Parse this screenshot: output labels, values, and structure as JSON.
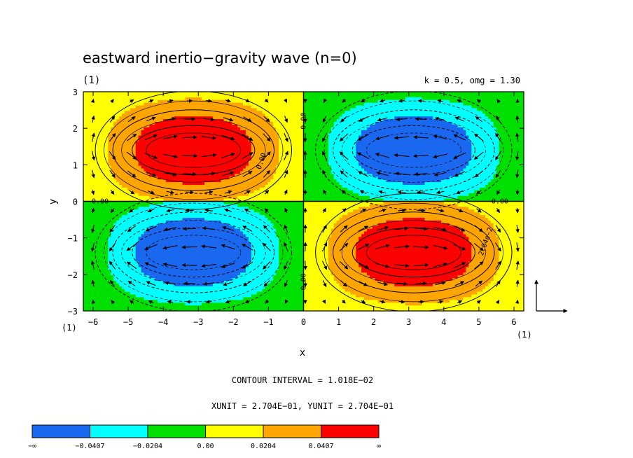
{
  "title": "eastward inertio−gravity wave (n=0)",
  "panel_label_top": "(1)",
  "params": "k = 0.5, omg = 1.30",
  "x_axis_unit_label": "(1)",
  "y_axis_unit_label": "(1)",
  "contour_interval_text": "CONTOUR INTERVAL = 1.018E−02",
  "unit_text": "XUNIT = 2.704E−01, YUNIT = 2.704E−01",
  "contour_labels": [
    "0.00",
    "0.00",
    "0.00",
    "0.00",
    "0.00",
    "2.04e−2",
    "2.04e−2"
  ],
  "colorbar": {
    "labels": [
      "−∞",
      "−0.0407",
      "−0.0204",
      "0.00",
      "0.0204",
      "0.0407",
      "∞"
    ],
    "colors": [
      "#1a68f0",
      "#00ffff",
      "#00e000",
      "#ffff00",
      "#ffa500",
      "#ff0000"
    ]
  },
  "chart_data": {
    "type": "contour",
    "xlabel": "x",
    "ylabel": "y",
    "xlim": [
      -6.28,
      6.28
    ],
    "ylim": [
      -3,
      3
    ],
    "xticks": [
      -6,
      -5,
      -4,
      -3,
      -2,
      -1,
      0,
      1,
      2,
      3,
      4,
      5,
      6
    ],
    "yticks": [
      -3,
      -2,
      -1,
      0,
      1,
      2,
      3
    ],
    "xtick_labels": [
      "−6",
      "−5",
      "−4",
      "−3",
      "−2",
      "−1",
      "0",
      "1",
      "2",
      "3",
      "4",
      "5",
      "6"
    ],
    "ytick_labels": [
      "−3",
      "−2",
      "−1",
      "0",
      "1",
      "2",
      "3"
    ],
    "contour_interval": 0.01018,
    "levels": [
      -0.0407,
      -0.0204,
      0.0,
      0.0204,
      0.0407
    ],
    "field_extrema": [
      {
        "x": -3.14,
        "y": 1.4,
        "sign": "max"
      },
      {
        "x": 3.14,
        "y": 1.4,
        "sign": "min"
      },
      {
        "x": -3.14,
        "y": -1.4,
        "sign": "min"
      },
      {
        "x": 3.14,
        "y": -1.4,
        "sign": "max"
      }
    ],
    "vectors": "horizontal velocity field (arrows)",
    "wavenumber_k": 0.5,
    "omega": 1.3
  }
}
